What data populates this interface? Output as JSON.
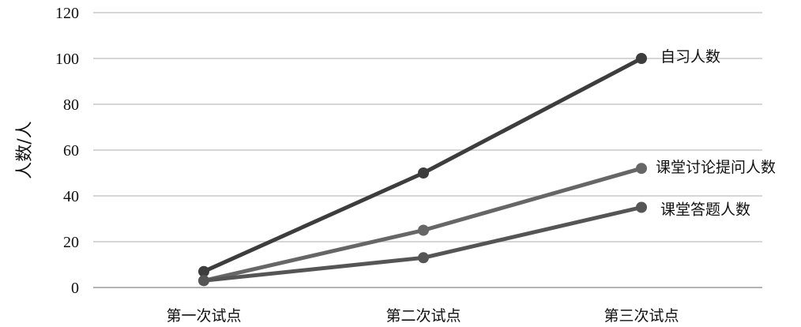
{
  "chart_data": {
    "type": "line",
    "title": "",
    "xlabel": "",
    "ylabel": "人数/人",
    "categories": [
      "第一次试点",
      "第二次试点",
      "第三次试点"
    ],
    "ylim": [
      0,
      120
    ],
    "yticks": [
      0,
      20,
      40,
      60,
      80,
      100,
      120
    ],
    "grid": true,
    "legend": "direct-labels-at-line-end",
    "series": [
      {
        "name": "自习人数",
        "values": [
          7,
          50,
          100
        ],
        "color": "#3d3d3d"
      },
      {
        "name": "课堂讨论提问人数",
        "values": [
          3,
          25,
          52
        ],
        "color": "#666666"
      },
      {
        "name": "课堂答题人数",
        "values": [
          3,
          13,
          35
        ],
        "color": "#555555"
      }
    ]
  }
}
